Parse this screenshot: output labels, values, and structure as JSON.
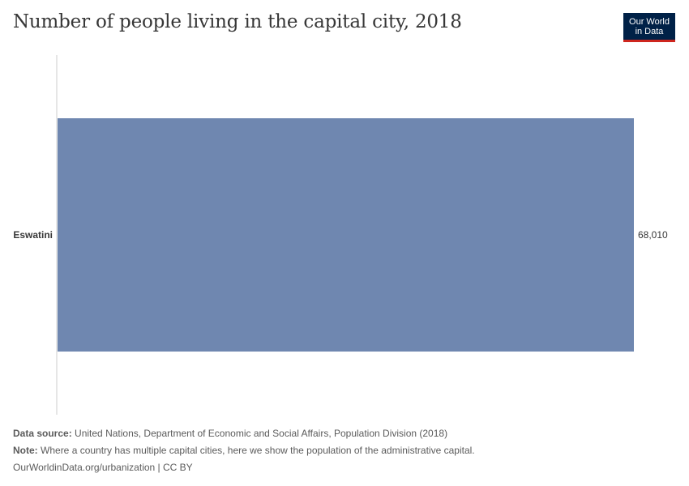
{
  "header": {
    "title": "Number of people living in the capital city, 2018",
    "logo_line1": "Our World",
    "logo_line2": "in Data"
  },
  "chart_data": {
    "type": "bar",
    "orientation": "horizontal",
    "categories": [
      "Eswatini"
    ],
    "values": [
      68010
    ],
    "value_labels": [
      "68,010"
    ],
    "bar_color": "#6f87b0",
    "title": "Number of people living in the capital city, 2018",
    "xlabel": "",
    "ylabel": ""
  },
  "footer": {
    "source_label": "Data source:",
    "source_text": "United Nations, Department of Economic and Social Affairs, Population Division (2018)",
    "note_label": "Note:",
    "note_text": "Where a country has multiple capital cities, here we show the population of the administrative capital.",
    "link_text": "OurWorldinData.org/urbanization | CC BY"
  },
  "colors": {
    "logo_bg": "#002147",
    "logo_accent": "#ce261e",
    "axis": "#cccccc",
    "text": "#373737"
  }
}
